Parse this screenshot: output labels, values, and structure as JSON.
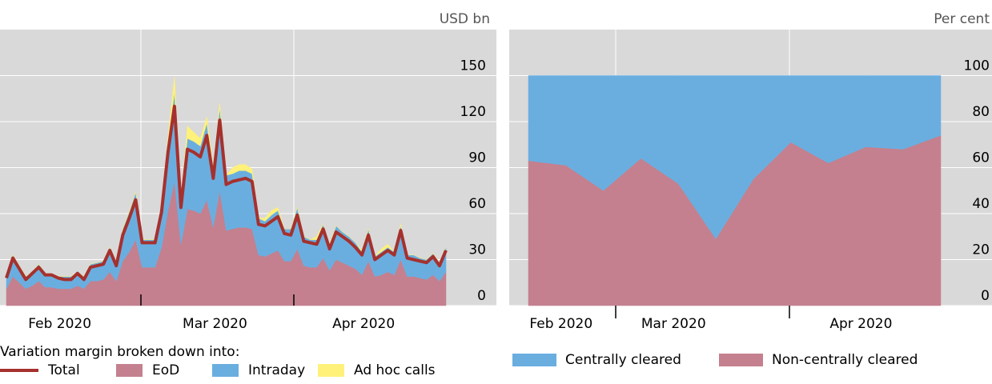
{
  "chart_data": [
    {
      "type": "area",
      "units": "USD bn",
      "legend_title": "Variation margin broken down into:",
      "categories": [
        null,
        null,
        null,
        null,
        null,
        null,
        null,
        null,
        null,
        "Feb 2020",
        null,
        null,
        null,
        null,
        null,
        null,
        null,
        null,
        null,
        null,
        null,
        null,
        null,
        null,
        null,
        null,
        null,
        null,
        null,
        null,
        null,
        null,
        null,
        "Mar 2020",
        null,
        null,
        null,
        null,
        null,
        null,
        null,
        null,
        null,
        null,
        null,
        null,
        null,
        null,
        null,
        null,
        null,
        null,
        null,
        null,
        null,
        null,
        "Apr 2020",
        null,
        null,
        null,
        null,
        null,
        null,
        null,
        null,
        null,
        null,
        null,
        null
      ],
      "ylim": [
        0,
        180
      ],
      "yticks": [
        0,
        30,
        60,
        90,
        120,
        150
      ],
      "grid": true,
      "series": [
        {
          "name": "Total",
          "color": "#a5312e",
          "style": "line",
          "values": [
            18,
            31,
            24,
            17,
            21,
            25,
            20,
            20,
            18,
            17,
            17,
            21,
            17,
            25,
            26,
            27,
            36,
            26,
            46,
            57,
            69,
            41,
            41,
            41,
            61,
            100,
            130,
            64,
            102,
            100,
            97,
            111,
            83,
            121,
            79,
            81,
            82,
            83,
            81,
            53,
            52,
            55,
            58,
            47,
            46,
            59,
            42,
            41,
            40,
            50,
            37,
            48,
            45,
            42,
            38,
            33,
            46,
            30,
            33,
            36,
            33,
            49,
            31,
            30,
            29,
            28,
            32,
            26,
            36
          ]
        },
        {
          "name": "EoD",
          "color": "#c4808e",
          "style": "area",
          "values": [
            11,
            19,
            15,
            11,
            13,
            16,
            12,
            12,
            11,
            11,
            11,
            13,
            11,
            16,
            16,
            17,
            22,
            16,
            29,
            35,
            43,
            25,
            25,
            25,
            38,
            62,
            81,
            40,
            63,
            62,
            60,
            69,
            51,
            75,
            49,
            50,
            51,
            51,
            50,
            33,
            32,
            34,
            36,
            29,
            29,
            37,
            26,
            25,
            25,
            31,
            23,
            30,
            28,
            26,
            24,
            20,
            29,
            19,
            20,
            22,
            20,
            30,
            19,
            19,
            18,
            17,
            20,
            16,
            22
          ]
        },
        {
          "name": "Intraday",
          "color": "#6aaee0",
          "style": "area",
          "values": [
            8,
            14,
            11,
            8,
            9,
            11,
            9,
            9,
            8,
            8,
            8,
            9,
            8,
            11,
            12,
            12,
            16,
            12,
            21,
            26,
            31,
            18,
            18,
            18,
            27,
            45,
            58,
            29,
            46,
            45,
            44,
            50,
            37,
            54,
            36,
            36,
            37,
            37,
            36,
            24,
            23,
            25,
            26,
            21,
            21,
            27,
            19,
            18,
            18,
            22,
            17,
            22,
            20,
            19,
            17,
            15,
            21,
            13,
            15,
            16,
            15,
            22,
            14,
            14,
            13,
            13,
            14,
            12,
            16
          ]
        },
        {
          "name": "Ad hoc calls",
          "color": "#fff17a",
          "style": "area",
          "values": [
            0,
            0,
            0,
            0,
            0,
            0,
            0,
            0,
            0,
            0,
            0,
            0,
            0,
            0,
            0,
            0,
            0,
            0,
            0,
            0,
            0,
            0,
            0,
            0,
            0,
            3,
            10,
            0,
            8,
            6,
            5,
            4,
            2,
            3,
            0,
            4,
            4,
            4,
            3,
            0,
            2,
            3,
            2,
            0,
            0,
            0,
            0,
            0,
            2,
            0,
            0,
            0,
            0,
            0,
            0,
            1,
            0,
            0,
            2,
            2,
            0,
            1,
            0,
            0,
            0,
            0,
            0,
            0,
            0
          ]
        }
      ]
    },
    {
      "type": "area",
      "units": "Per cent",
      "categories": [
        null,
        "Feb 2020",
        null,
        null,
        "Mar 2020",
        null,
        null,
        null,
        null,
        "Apr 2020",
        null,
        null
      ],
      "ylim": [
        0,
        120
      ],
      "yticks": [
        0,
        20,
        40,
        60,
        80,
        100
      ],
      "grid": true,
      "series": [
        {
          "name": "Non-centrally cleared",
          "color": "#c4808e",
          "style": "area",
          "values": [
            63,
            61,
            50,
            64,
            53,
            29,
            55,
            71,
            62,
            69,
            68,
            74
          ]
        },
        {
          "name": "Centrally cleared",
          "color": "#6aaee0",
          "style": "area",
          "values": [
            37,
            39,
            50,
            36,
            47,
            71,
            45,
            29,
            38,
            31,
            32,
            26
          ]
        }
      ]
    }
  ]
}
